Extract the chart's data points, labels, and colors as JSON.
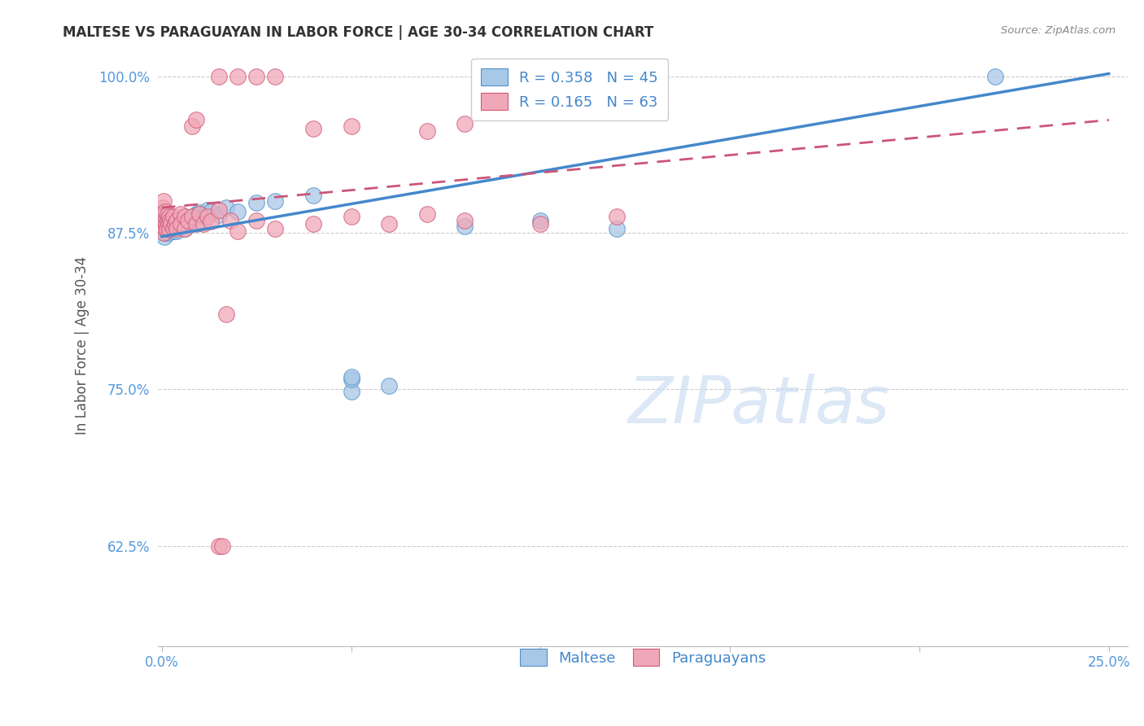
{
  "title": "MALTESE VS PARAGUAYAN IN LABOR FORCE | AGE 30-34 CORRELATION CHART",
  "source": "Source: ZipAtlas.com",
  "ylabel": "In Labor Force | Age 30-34",
  "watermark": "ZIPatlas",
  "xlim_min": -0.001,
  "xlim_max": 0.255,
  "ylim_min": 0.545,
  "ylim_max": 1.025,
  "xtick_positions": [
    0.0,
    0.05,
    0.1,
    0.15,
    0.2,
    0.25
  ],
  "xticklabels": [
    "0.0%",
    "",
    "",
    "",
    "",
    "25.0%"
  ],
  "ytick_positions": [
    0.625,
    0.75,
    0.875,
    1.0
  ],
  "yticklabels": [
    "62.5%",
    "75.0%",
    "87.5%",
    "100.0%"
  ],
  "legend_r_blue": "0.358",
  "legend_n_blue": "45",
  "legend_r_pink": "0.165",
  "legend_n_pink": "63",
  "blue_fill": "#a8c8e8",
  "blue_edge": "#5090c8",
  "pink_fill": "#f0a8b8",
  "pink_edge": "#d05878",
  "blue_line_color": "#4488cc",
  "pink_line_color": "#cc5577",
  "blue_intercept": 0.872,
  "blue_slope": 0.52,
  "pink_intercept": 0.895,
  "pink_slope": 0.28,
  "maltese_x": [
    0.0002,
    0.0003,
    0.0004,
    0.0005,
    0.0006,
    0.0007,
    0.0008,
    0.0009,
    0.001,
    0.0012,
    0.0015,
    0.0018,
    0.002,
    0.0022,
    0.0025,
    0.003,
    0.003,
    0.0035,
    0.004,
    0.004,
    0.005,
    0.005,
    0.006,
    0.006,
    0.007,
    0.008,
    0.009,
    0.01,
    0.011,
    0.012,
    0.013,
    0.015,
    0.017,
    0.02,
    0.025,
    0.03,
    0.04,
    0.05,
    0.06,
    0.08,
    0.1,
    0.12,
    0.22,
    0.05,
    0.05
  ],
  "maltese_y": [
    0.878,
    0.882,
    0.876,
    0.884,
    0.872,
    0.888,
    0.875,
    0.881,
    0.877,
    0.879,
    0.883,
    0.875,
    0.885,
    0.878,
    0.887,
    0.876,
    0.882,
    0.879,
    0.884,
    0.876,
    0.881,
    0.886,
    0.878,
    0.884,
    0.883,
    0.886,
    0.89,
    0.891,
    0.888,
    0.893,
    0.892,
    0.889,
    0.895,
    0.892,
    0.899,
    0.9,
    0.905,
    0.748,
    0.753,
    0.88,
    0.885,
    0.878,
    1.0,
    0.758,
    0.76
  ],
  "paraguayan_x": [
    0.0001,
    0.0002,
    0.0003,
    0.0003,
    0.0004,
    0.0005,
    0.0005,
    0.0006,
    0.0007,
    0.0008,
    0.0009,
    0.001,
    0.001,
    0.0012,
    0.0013,
    0.0015,
    0.0015,
    0.0018,
    0.002,
    0.002,
    0.0022,
    0.0025,
    0.003,
    0.003,
    0.0035,
    0.004,
    0.004,
    0.005,
    0.005,
    0.006,
    0.006,
    0.007,
    0.008,
    0.009,
    0.01,
    0.011,
    0.012,
    0.013,
    0.015,
    0.018,
    0.02,
    0.025,
    0.03,
    0.04,
    0.05,
    0.06,
    0.07,
    0.08,
    0.1,
    0.12,
    0.008,
    0.009,
    0.015,
    0.02,
    0.025,
    0.03,
    0.04,
    0.05,
    0.07,
    0.08,
    0.015,
    0.016,
    0.017
  ],
  "paraguayan_y": [
    0.878,
    0.89,
    0.895,
    0.882,
    0.9,
    0.875,
    0.888,
    0.882,
    0.879,
    0.884,
    0.892,
    0.878,
    0.885,
    0.882,
    0.878,
    0.885,
    0.89,
    0.882,
    0.878,
    0.888,
    0.885,
    0.882,
    0.879,
    0.888,
    0.882,
    0.885,
    0.878,
    0.89,
    0.882,
    0.888,
    0.878,
    0.885,
    0.888,
    0.882,
    0.89,
    0.882,
    0.888,
    0.884,
    0.893,
    0.885,
    0.876,
    0.885,
    0.878,
    0.882,
    0.888,
    0.882,
    0.89,
    0.885,
    0.882,
    0.888,
    0.96,
    0.965,
    1.0,
    1.0,
    1.0,
    1.0,
    0.958,
    0.96,
    0.956,
    0.962,
    0.625,
    0.625,
    0.81
  ]
}
